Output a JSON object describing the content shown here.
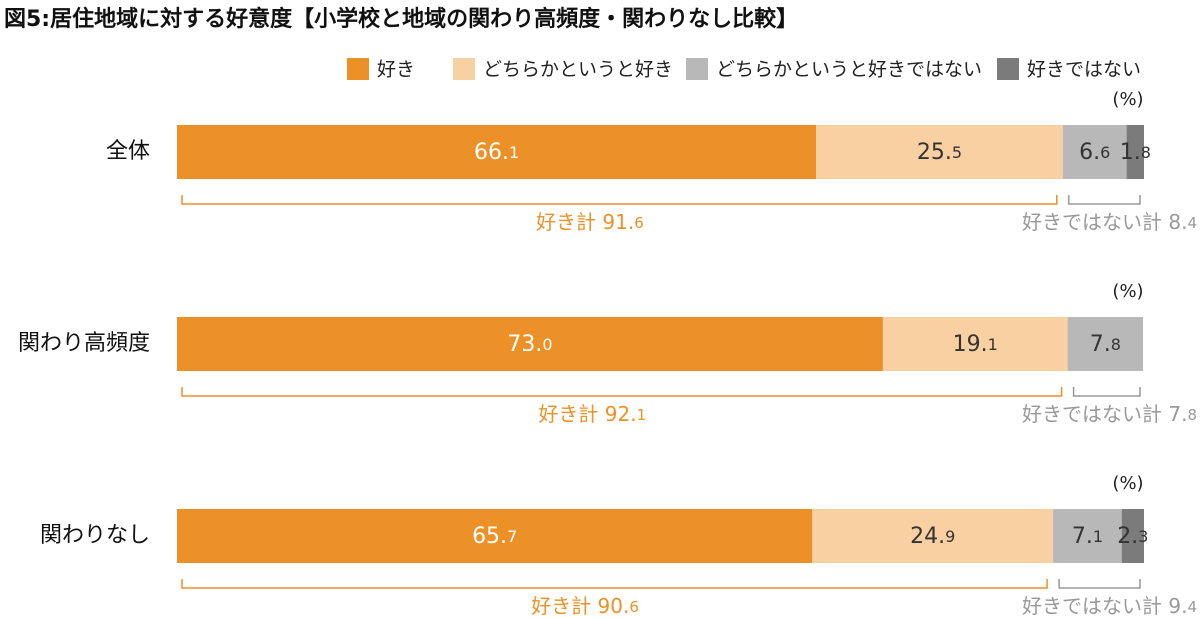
{
  "chart_data": {
    "type": "bar",
    "orientation": "horizontal",
    "stacked": true,
    "title": "図5:居住地域に対する好意度【小学校と地域の関わり高頻度・関わりなし比較】",
    "unit": "(%)",
    "categories": [
      "全体",
      "関わり高頻度",
      "関わりなし"
    ],
    "series": [
      {
        "name": "好き",
        "values": [
          66.1,
          73.0,
          65.7
        ],
        "color": "#ec9127"
      },
      {
        "name": "どちらかというと好き",
        "values": [
          25.5,
          19.1,
          24.9
        ],
        "color": "#f8d0a2"
      },
      {
        "name": "どちらかというと好きではない",
        "values": [
          6.6,
          7.8,
          7.1
        ],
        "color": "#b8b8b8"
      },
      {
        "name": "好きではない",
        "values": [
          1.8,
          0,
          2.3
        ],
        "color": "#7b7b7b"
      }
    ],
    "totals": {
      "like_label": "好き計",
      "like_values": [
        "91.6",
        "92.1",
        "90.6"
      ],
      "dislike_label": "好きではない計",
      "dislike_values": [
        "8.4",
        "7.8",
        "9.4"
      ]
    },
    "legend_position": "top-right",
    "grid": false,
    "xlim": [
      0,
      100
    ]
  }
}
